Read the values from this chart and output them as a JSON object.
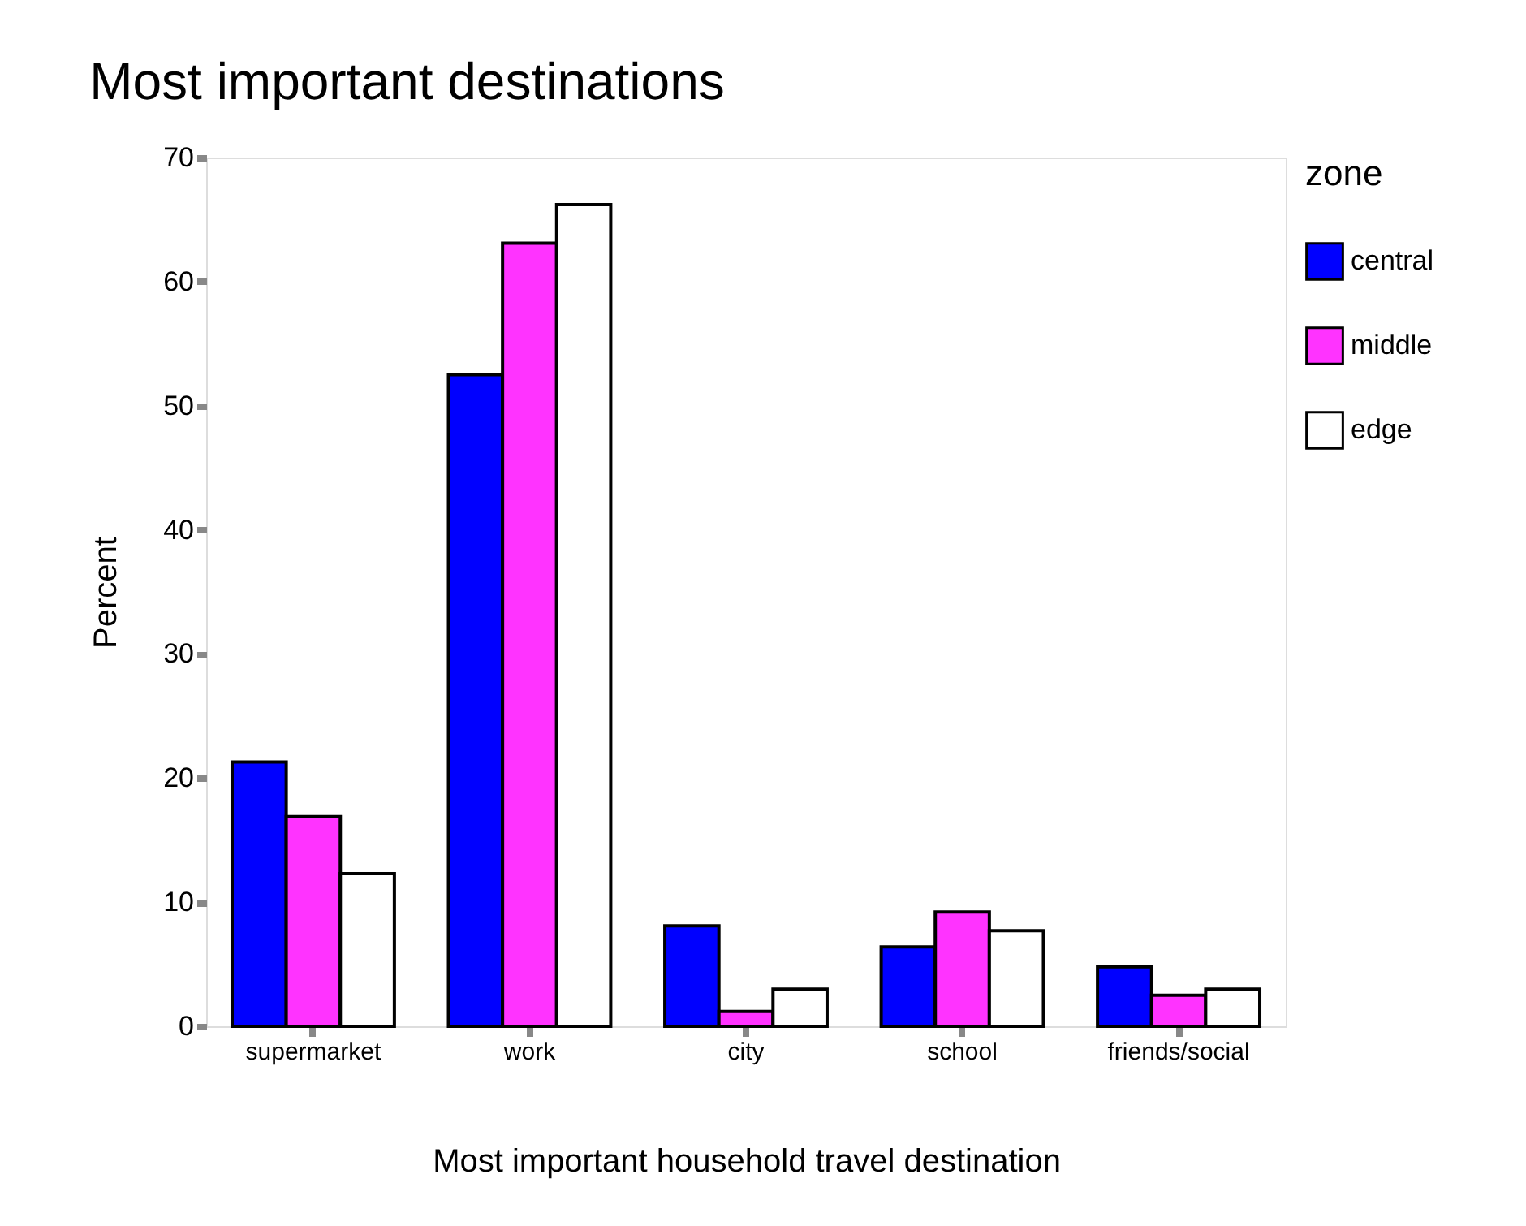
{
  "chart_data": {
    "type": "bar",
    "title": "Most important destinations",
    "xlabel": "Most important household travel destination",
    "ylabel": "Percent",
    "legend_title": "zone",
    "categories": [
      "supermarket",
      "work",
      "city",
      "school",
      "friends/social"
    ],
    "series": [
      {
        "name": "central",
        "color": "#0000ff",
        "values": [
          21.3,
          52.5,
          8.1,
          6.4,
          4.8
        ]
      },
      {
        "name": "middle",
        "color": "#ff33ff",
        "values": [
          16.9,
          63.1,
          1.2,
          9.2,
          2.5
        ]
      },
      {
        "name": "edge",
        "color": "#ffffff",
        "values": [
          12.3,
          66.2,
          3.0,
          7.7,
          3.0
        ]
      }
    ],
    "ylim": [
      0,
      70
    ],
    "yticks": [
      0,
      10,
      20,
      30,
      40,
      50,
      60,
      70
    ],
    "grid": false,
    "legend": "right"
  }
}
